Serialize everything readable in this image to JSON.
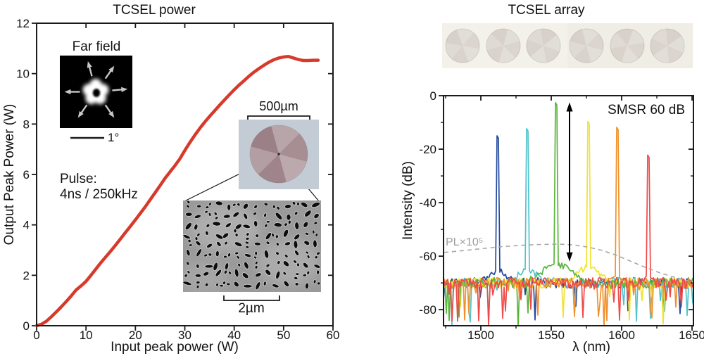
{
  "left_panel": {
    "pulse_label_line1": "Pulse:",
    "pulse_label_line2": "4ns / 250kHz",
    "farfield": {
      "label": "Far field",
      "scale_label": "1°"
    },
    "device_inset": {
      "scale_label": "500µm"
    },
    "sem_inset": {
      "scale_label": "2µm"
    }
  },
  "right_panel": {},
  "colors": {
    "curve_red": "#d63a2a",
    "axis": "#1a1a1a",
    "pl_gray": "#a8a8a8",
    "farfield_arrow_gray": "#c6c6c6",
    "device_photo_bg": "#c3ccd4",
    "device_circle": "#9a7f85",
    "array_strip_bg": "#f4f1ea",
    "array_circle": "#d7d1c9",
    "sem_bg": "#9a9a9a"
  },
  "chart_data": [
    {
      "type": "line",
      "title": "TCSEL power",
      "xlabel": "Input peak power (W)",
      "ylabel": "Output Peak Power (W)",
      "xlim": [
        0,
        60
      ],
      "ylim": [
        0,
        12
      ],
      "xticks": [
        0,
        10,
        20,
        30,
        40,
        50,
        60
      ],
      "yticks": [
        0,
        2,
        4,
        6,
        8,
        10,
        12
      ],
      "grid": false,
      "legend": null,
      "series": [
        {
          "name": "TCSEL output peak power",
          "color": "#d63a2a",
          "points": [
            [
              0,
              0
            ],
            [
              1,
              0.06
            ],
            [
              2,
              0.18
            ],
            [
              3,
              0.36
            ],
            [
              4,
              0.55
            ],
            [
              5,
              0.75
            ],
            [
              6,
              0.96
            ],
            [
              7,
              1.18
            ],
            [
              8,
              1.42
            ],
            [
              9,
              1.58
            ],
            [
              10,
              1.76
            ],
            [
              11,
              2.0
            ],
            [
              12,
              2.25
            ],
            [
              13,
              2.5
            ],
            [
              14,
              2.73
            ],
            [
              15,
              2.96
            ],
            [
              16,
              3.2
            ],
            [
              17,
              3.45
            ],
            [
              18,
              3.7
            ],
            [
              19,
              3.95
            ],
            [
              20,
              4.2
            ],
            [
              21,
              4.46
            ],
            [
              22,
              4.72
            ],
            [
              23,
              5.0
            ],
            [
              24,
              5.28
            ],
            [
              25,
              5.56
            ],
            [
              26,
              5.85
            ],
            [
              27,
              6.1
            ],
            [
              28,
              6.35
            ],
            [
              29,
              6.62
            ],
            [
              30,
              6.95
            ],
            [
              31,
              7.26
            ],
            [
              32,
              7.55
            ],
            [
              33,
              7.82
            ],
            [
              34,
              8.07
            ],
            [
              35,
              8.3
            ],
            [
              36,
              8.52
            ],
            [
              37,
              8.74
            ],
            [
              38,
              8.95
            ],
            [
              39,
              9.16
            ],
            [
              40,
              9.36
            ],
            [
              41,
              9.55
            ],
            [
              42,
              9.72
            ],
            [
              43,
              9.9
            ],
            [
              44,
              10.06
            ],
            [
              45,
              10.2
            ],
            [
              46,
              10.33
            ],
            [
              47,
              10.45
            ],
            [
              48,
              10.55
            ],
            [
              49,
              10.62
            ],
            [
              50,
              10.66
            ],
            [
              51,
              10.68
            ],
            [
              52,
              10.62
            ],
            [
              53,
              10.56
            ],
            [
              54,
              10.52
            ],
            [
              55,
              10.52
            ],
            [
              56,
              10.53
            ],
            [
              57,
              10.53
            ]
          ]
        }
      ]
    },
    {
      "type": "line",
      "title": "TCSEL array",
      "xlabel": "λ (nm)",
      "ylabel": "Intensity (dB)",
      "xlim": [
        1473.5,
        1651
      ],
      "ylim": [
        -86,
        0
      ],
      "xticks": [
        1500,
        1550,
        1600,
        1650
      ],
      "xminorticks": [
        1475,
        1525,
        1575,
        1625
      ],
      "yticks": [
        0,
        -20,
        -40,
        -60,
        -80
      ],
      "yminorticks": [
        -10,
        -30,
        -50,
        -70
      ],
      "grid": false,
      "annotations": {
        "smsr": "SMSR 60 dB",
        "smsr_arrow": {
          "x_nm": 1563,
          "top_db": -2.5,
          "bottom_db": -62
        },
        "pl_label": "PL×10⁵"
      },
      "noise": {
        "floor_db": -70,
        "jitter_db": 2,
        "spike_prob": 0.09,
        "spike_depth_db": 16,
        "step_nm": 1
      },
      "pl_curve": {
        "name": "photoluminescence x1e5",
        "color": "#a8a8a8",
        "dashed": true,
        "points": [
          [
            1474,
            -58.6
          ],
          [
            1488,
            -57.9
          ],
          [
            1502,
            -57.1
          ],
          [
            1516,
            -56.4
          ],
          [
            1530,
            -55.9
          ],
          [
            1544,
            -55.6
          ],
          [
            1556,
            -55.5
          ],
          [
            1566,
            -55.8
          ],
          [
            1576,
            -56.6
          ],
          [
            1586,
            -57.8
          ],
          [
            1596,
            -59.6
          ],
          [
            1606,
            -61.8
          ],
          [
            1616,
            -64.0
          ],
          [
            1628,
            -66.4
          ],
          [
            1640,
            -68.2
          ],
          [
            1651,
            -69.8
          ]
        ]
      },
      "series": [
        {
          "name": "laser-1",
          "color": "#24499c",
          "peak_nm": 1512.0,
          "peak_db": -15.0,
          "shoulder_rise_db": 4.5,
          "shoulder_sigma_nm": 9,
          "seed": 3
        },
        {
          "name": "laser-2",
          "color": "#4fc4cd",
          "peak_nm": 1533.0,
          "peak_db": -12.3,
          "shoulder_rise_db": 5.0,
          "shoulder_sigma_nm": 9,
          "seed": 17
        },
        {
          "name": "laser-3",
          "color": "#5ab53c",
          "peak_nm": 1553.5,
          "peak_db": -2.6,
          "shoulder_rise_db": 7.0,
          "shoulder_sigma_nm": 14,
          "seed": 29
        },
        {
          "name": "laser-4",
          "color": "#f1e232",
          "peak_nm": 1576.5,
          "peak_db": -9.6,
          "shoulder_rise_db": 6.0,
          "shoulder_sigma_nm": 10,
          "seed": 41
        },
        {
          "name": "laser-5",
          "color": "#f1902b",
          "peak_nm": 1597.0,
          "peak_db": -11.8,
          "shoulder_rise_db": 2.5,
          "shoulder_sigma_nm": 6,
          "seed": 53
        },
        {
          "name": "laser-6",
          "color": "#ef4a49",
          "peak_nm": 1619.0,
          "peak_db": -22.2,
          "shoulder_rise_db": 2.5,
          "shoulder_sigma_nm": 5,
          "seed": 67
        }
      ],
      "draw_order": [
        0,
        1,
        3,
        2,
        4,
        5
      ]
    }
  ]
}
